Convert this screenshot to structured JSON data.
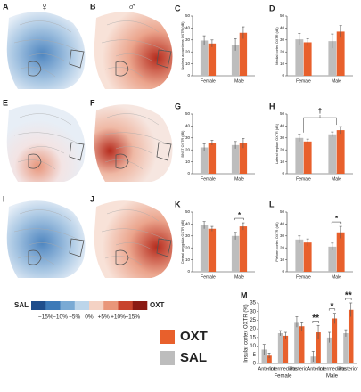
{
  "panels": [
    {
      "label": "A",
      "symbol": "♀"
    },
    {
      "label": "B",
      "symbol": "♂"
    },
    {
      "label": "E"
    },
    {
      "label": "F"
    },
    {
      "label": "I"
    },
    {
      "label": "J"
    }
  ],
  "colorbar": {
    "low": "SAL",
    "high": "OXT",
    "ticks": [
      "−15%",
      "−10%",
      "−5%",
      "0%",
      "+5%",
      "+10%",
      "+15%"
    ],
    "colors": [
      "#1f4e8c",
      "#3d7ab8",
      "#7aaad4",
      "#bcd5ea",
      "#f4d2c4",
      "#e9967a",
      "#c8442e",
      "#8b1a14"
    ]
  },
  "chart_data": [
    {
      "type": "bar",
      "label": "C",
      "ylabel": "Nucleus accumbens OXTR (dB)",
      "categories": [
        "Female",
        "Male"
      ],
      "ylim": [
        0,
        50
      ],
      "yticks": [
        0,
        10,
        20,
        30,
        40,
        50
      ],
      "series": [
        {
          "name": "SAL",
          "color": "#bdbdbd",
          "values": [
            29.5,
            26
          ],
          "errors": [
            4,
            5
          ]
        },
        {
          "name": "OXT",
          "color": "#e8602c",
          "values": [
            27,
            36
          ],
          "errors": [
            3,
            5
          ]
        }
      ],
      "significance": [
        null,
        null
      ]
    },
    {
      "type": "bar",
      "label": "D",
      "ylabel": "Medial cortex OXTR (dB)",
      "categories": [
        "Female",
        "Male"
      ],
      "ylim": [
        0,
        50
      ],
      "yticks": [
        0,
        10,
        20,
        30,
        40,
        50
      ],
      "series": [
        {
          "name": "SAL",
          "color": "#bdbdbd",
          "values": [
            30.5,
            29
          ],
          "errors": [
            5,
            6
          ]
        },
        {
          "name": "OXT",
          "color": "#e8602c",
          "values": [
            28,
            37
          ],
          "errors": [
            3,
            5
          ]
        }
      ],
      "significance": [
        null,
        null
      ]
    },
    {
      "type": "bar",
      "label": "G",
      "ylabel": "BNST OXTR (dB)",
      "categories": [
        "Female",
        "Male"
      ],
      "ylim": [
        0,
        50
      ],
      "yticks": [
        0,
        10,
        20,
        30,
        40,
        50
      ],
      "series": [
        {
          "name": "SAL",
          "color": "#bdbdbd",
          "values": [
            22,
            24
          ],
          "errors": [
            3,
            3
          ]
        },
        {
          "name": "OXT",
          "color": "#e8602c",
          "values": [
            26,
            25.5
          ],
          "errors": [
            2,
            4
          ]
        }
      ],
      "significance": [
        null,
        null
      ]
    },
    {
      "type": "bar",
      "label": "H",
      "ylabel": "Lateral septum OXTR (dB)",
      "categories": [
        "Female",
        "Male"
      ],
      "ylim": [
        0,
        50
      ],
      "yticks": [
        0,
        10,
        20,
        30,
        40,
        50
      ],
      "series": [
        {
          "name": "SAL",
          "color": "#bdbdbd",
          "values": [
            30,
            33
          ],
          "errors": [
            3,
            2
          ]
        },
        {
          "name": "OXT",
          "color": "#e8602c",
          "values": [
            27,
            36.5
          ],
          "errors": [
            2,
            3
          ]
        }
      ],
      "significance": [
        null,
        null
      ],
      "annotation": "†"
    },
    {
      "type": "bar",
      "label": "K",
      "ylabel": "Central amygdala OXTR (dB)",
      "categories": [
        "Female",
        "Male"
      ],
      "ylim": [
        0,
        50
      ],
      "yticks": [
        0,
        10,
        20,
        30,
        40,
        50
      ],
      "series": [
        {
          "name": "SAL",
          "color": "#bdbdbd",
          "values": [
            39,
            30
          ],
          "errors": [
            3,
            3
          ]
        },
        {
          "name": "OXT",
          "color": "#e8602c",
          "values": [
            36,
            38
          ],
          "errors": [
            2,
            3
          ]
        }
      ],
      "significance": [
        null,
        "*"
      ]
    },
    {
      "type": "bar",
      "label": "L",
      "ylabel": "Piriform cortex OXTR (dB)",
      "categories": [
        "Female",
        "Male"
      ],
      "ylim": [
        0,
        50
      ],
      "yticks": [
        0,
        10,
        20,
        30,
        40,
        50
      ],
      "series": [
        {
          "name": "SAL",
          "color": "#bdbdbd",
          "values": [
            27,
            21
          ],
          "errors": [
            3,
            3
          ]
        },
        {
          "name": "OXT",
          "color": "#e8602c",
          "values": [
            24.5,
            33
          ],
          "errors": [
            3,
            5
          ]
        }
      ],
      "significance": [
        null,
        "*"
      ]
    },
    {
      "type": "bar",
      "label": "M",
      "ylabel": "Insular cortex OXTR (%)",
      "categories": [
        "Anterior",
        "Intermediate",
        "Posterior",
        "Anterior",
        "Intermediate",
        "Posterior"
      ],
      "groups": [
        "Female",
        "Male"
      ],
      "ylim": [
        0,
        35
      ],
      "yticks": [
        0,
        5,
        10,
        15,
        20,
        25,
        30,
        35
      ],
      "legend": true,
      "series": [
        {
          "name": "SAL",
          "color": "#bdbdbd",
          "values": [
            8,
            17.5,
            24,
            4,
            15,
            17.5
          ],
          "errors": [
            3,
            1.5,
            3,
            3,
            3,
            2
          ]
        },
        {
          "name": "OXT",
          "color": "#e8602c",
          "values": [
            4.5,
            16,
            21.5,
            18,
            26,
            31
          ],
          "errors": [
            1.5,
            2,
            2.5,
            4,
            3,
            4
          ]
        }
      ],
      "significance": [
        null,
        null,
        null,
        "**",
        "*",
        "**"
      ]
    }
  ]
}
